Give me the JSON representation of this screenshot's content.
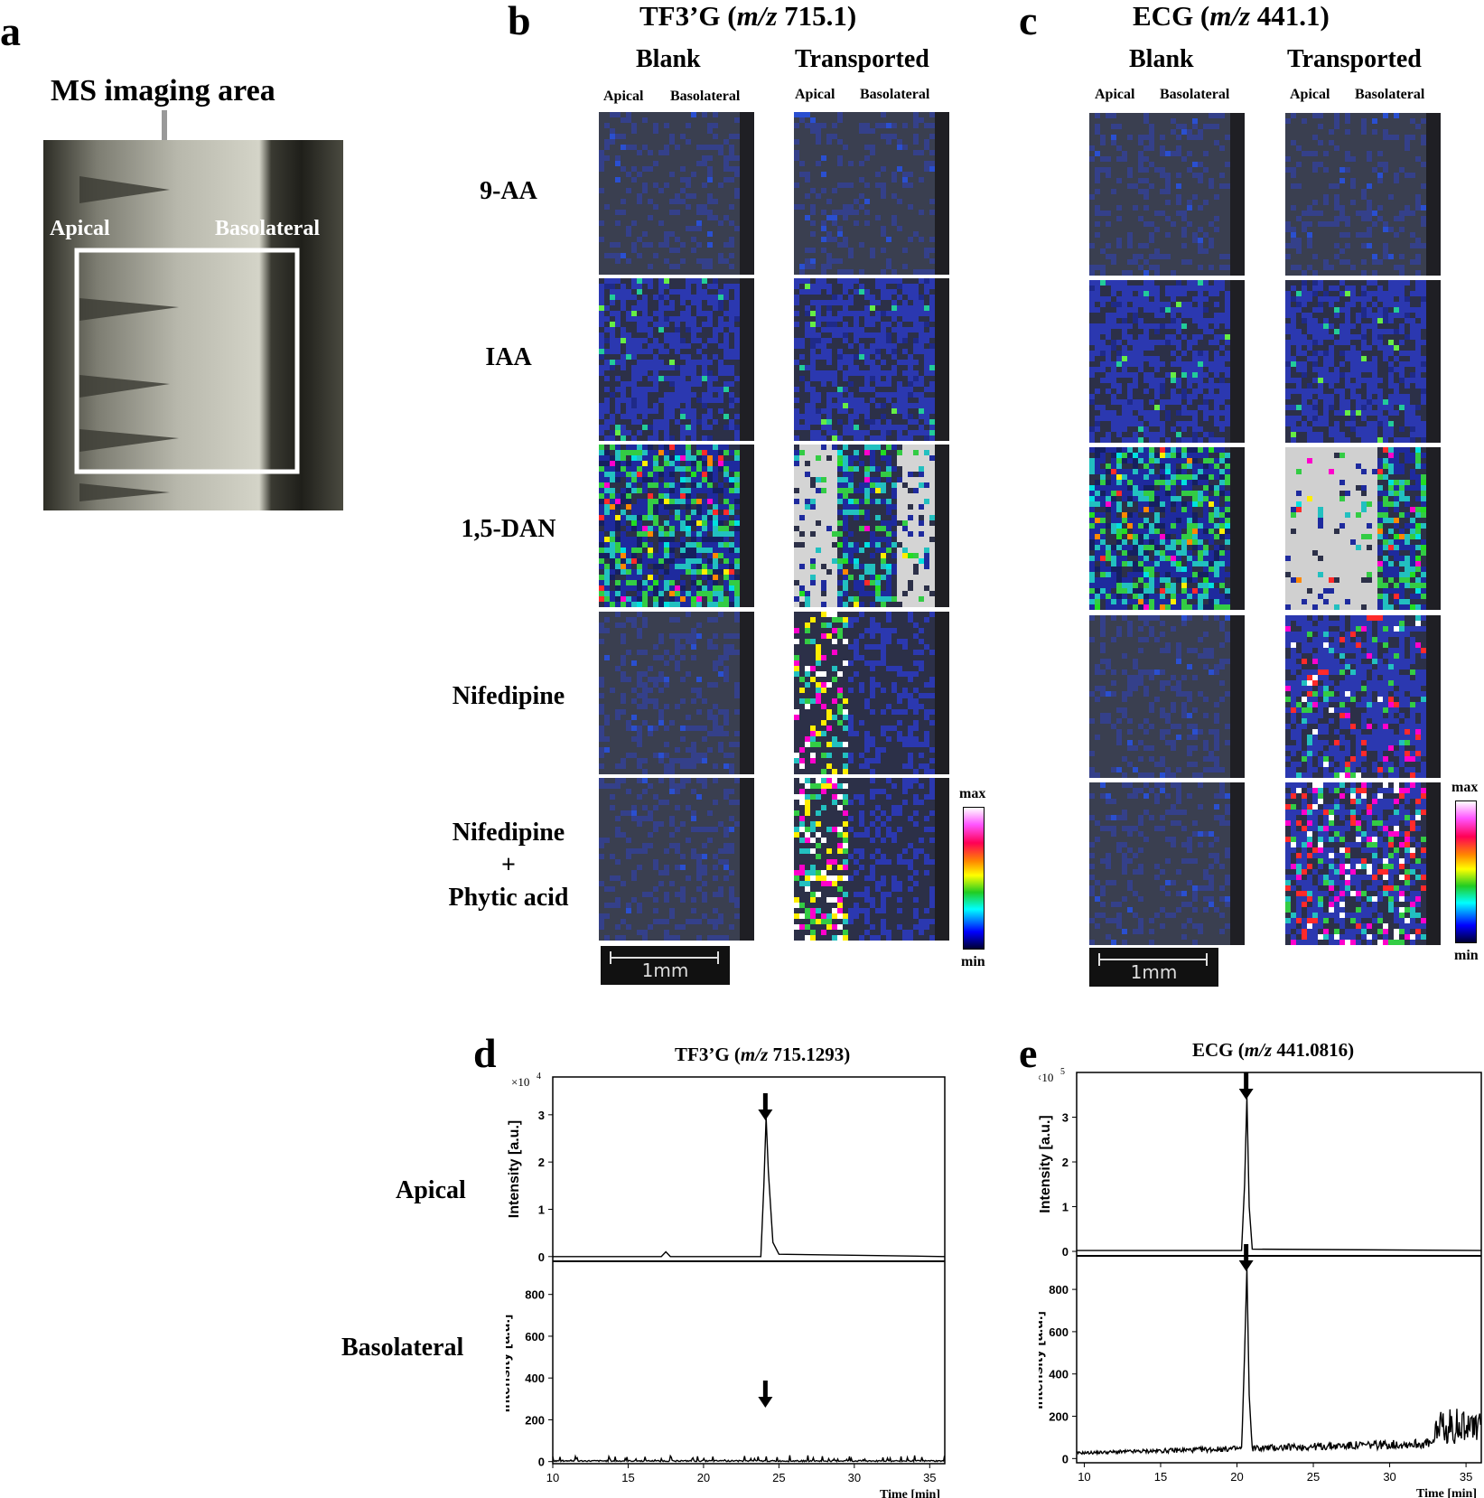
{
  "panels": {
    "a": {
      "letter": "a",
      "title": "MS imaging area",
      "apical": "Apical",
      "basolateral": "Basolateral"
    },
    "b": {
      "letter": "b",
      "title": "TF3’G (m/z 715.1)",
      "title_pre": "TF3’G (",
      "title_it": "m/z",
      "title_post": " 715.1)",
      "blank": "Blank",
      "transported": "Transported",
      "apical": "Apical",
      "basolateral": "Basolateral",
      "colorbar_max": "max",
      "colorbar_min": "min",
      "scale": "1mm"
    },
    "c": {
      "letter": "c",
      "title": "ECG (m/z 441.1)",
      "title_pre": "ECG (",
      "title_it": "m/z",
      "title_post": " 441.1)",
      "blank": "Blank",
      "transported": "Transported",
      "apical": "Apical",
      "basolateral": "Basolateral",
      "colorbar_max": "max",
      "colorbar_min": "min",
      "scale": "1mm"
    },
    "d": {
      "letter": "d",
      "title_pre": "TF3’G (",
      "title_it": "m/z",
      "title_post": " 715.1293)",
      "row_apical": "Apical",
      "row_basolateral": "Basolateral"
    },
    "e": {
      "letter": "e",
      "title_pre": "ECG (",
      "title_it": "m/z",
      "title_post": " 441.0816)"
    }
  },
  "matrices": [
    "9-AA",
    "IAA",
    "1,5-DAN",
    "Nifedipine",
    "Nifedipine",
    "+",
    "Phytic acid"
  ],
  "chart_data": [
    {
      "type": "line",
      "title": "TF3’G (m/z 715.1293)",
      "panel": "d-apical",
      "xlabel": "",
      "ylabel": "Intensity [a.u.]",
      "multiplier": "×10",
      "multiplier_exp": "4",
      "xlim": [
        10,
        36
      ],
      "ylim": [
        -0.1,
        3.8
      ],
      "yticks": [
        "0",
        "1",
        "2",
        "3"
      ],
      "ytick_values": [
        0,
        1,
        2,
        3
      ],
      "series": [
        {
          "x": [
            10,
            17.2,
            17.5,
            17.8,
            23.8,
            24.0,
            24.15,
            24.3,
            24.6,
            25.0,
            36
          ],
          "y": [
            0,
            0,
            0.1,
            0,
            0,
            1.5,
            2.95,
            1.8,
            0.3,
            0.05,
            0
          ]
        }
      ],
      "peak_arrow_x": 24.1
    },
    {
      "type": "line",
      "panel": "d-basolateral",
      "xlabel": "Time [min]",
      "ylabel": "Intensity [a.u.]",
      "xlim": [
        10,
        36
      ],
      "ylim": [
        -10,
        950
      ],
      "xticks": [
        "10",
        "15",
        "20",
        "25",
        "30",
        "35"
      ],
      "xtick_values": [
        10,
        15,
        20,
        25,
        30,
        35
      ],
      "yticks": [
        "0",
        "200",
        "400",
        "600",
        "800"
      ],
      "ytick_values": [
        0,
        200,
        400,
        600,
        800
      ],
      "series": [
        {
          "noise_max": 50,
          "peak_x": null,
          "x": [
            10,
            36
          ],
          "y": [
            0,
            0
          ]
        }
      ],
      "peak_arrow_x": 24.1
    },
    {
      "type": "line",
      "title": "ECG (m/z 441.0816)",
      "panel": "e-apical",
      "xlabel": "",
      "ylabel": "Intensity [a.u.]",
      "multiplier": "×10",
      "multiplier_exp": "5",
      "xlim": [
        9.5,
        36
      ],
      "ylim": [
        -0.1,
        4.0
      ],
      "yticks": [
        "0",
        "1",
        "2",
        "3"
      ],
      "ytick_values": [
        0,
        1,
        2,
        3
      ],
      "series": [
        {
          "x": [
            9.5,
            20.3,
            20.5,
            20.65,
            20.8,
            21.0,
            36
          ],
          "y": [
            0.02,
            0.02,
            1.5,
            3.45,
            1.0,
            0.05,
            0.02
          ]
        }
      ],
      "peak_arrow_x": 20.6
    },
    {
      "type": "line",
      "panel": "e-basolateral",
      "xlabel": "Time [min]",
      "ylabel": "Intensity [a.u.]",
      "xlim": [
        9.5,
        36
      ],
      "ylim": [
        -20,
        950
      ],
      "xticks": [
        "10",
        "15",
        "20",
        "25",
        "30",
        "35"
      ],
      "xtick_values": [
        10,
        15,
        20,
        25,
        30,
        35
      ],
      "yticks": [
        "0",
        "200",
        "400",
        "600",
        "800"
      ],
      "ytick_values": [
        0,
        200,
        400,
        600,
        800
      ],
      "series": [
        {
          "x": [
            9.5,
            20.3,
            20.5,
            20.65,
            20.8,
            21.0,
            36
          ],
          "y": [
            20,
            30,
            500,
            900,
            300,
            40,
            40
          ]
        }
      ],
      "peak_arrow_x": 20.6
    }
  ]
}
